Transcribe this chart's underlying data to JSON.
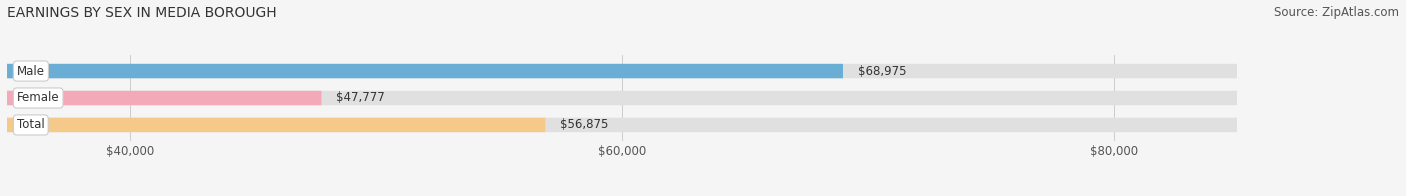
{
  "title": "EARNINGS BY SEX IN MEDIA BOROUGH",
  "source": "Source: ZipAtlas.com",
  "categories": [
    "Male",
    "Female",
    "Total"
  ],
  "values": [
    68975,
    47777,
    56875
  ],
  "bar_colors": [
    "#6aaed6",
    "#f4a9b8",
    "#f5c98a"
  ],
  "bar_bg_color": "#e0e0e0",
  "x_min": 35000,
  "x_max": 85000,
  "x_ticks": [
    40000,
    60000,
    80000
  ],
  "x_tick_labels": [
    "$40,000",
    "$60,000",
    "$80,000"
  ],
  "title_fontsize": 10,
  "source_fontsize": 8.5,
  "tick_fontsize": 8.5,
  "label_fontsize": 8.5,
  "value_fontsize": 8.5,
  "bar_height": 0.52,
  "background_color": "#f5f5f5"
}
